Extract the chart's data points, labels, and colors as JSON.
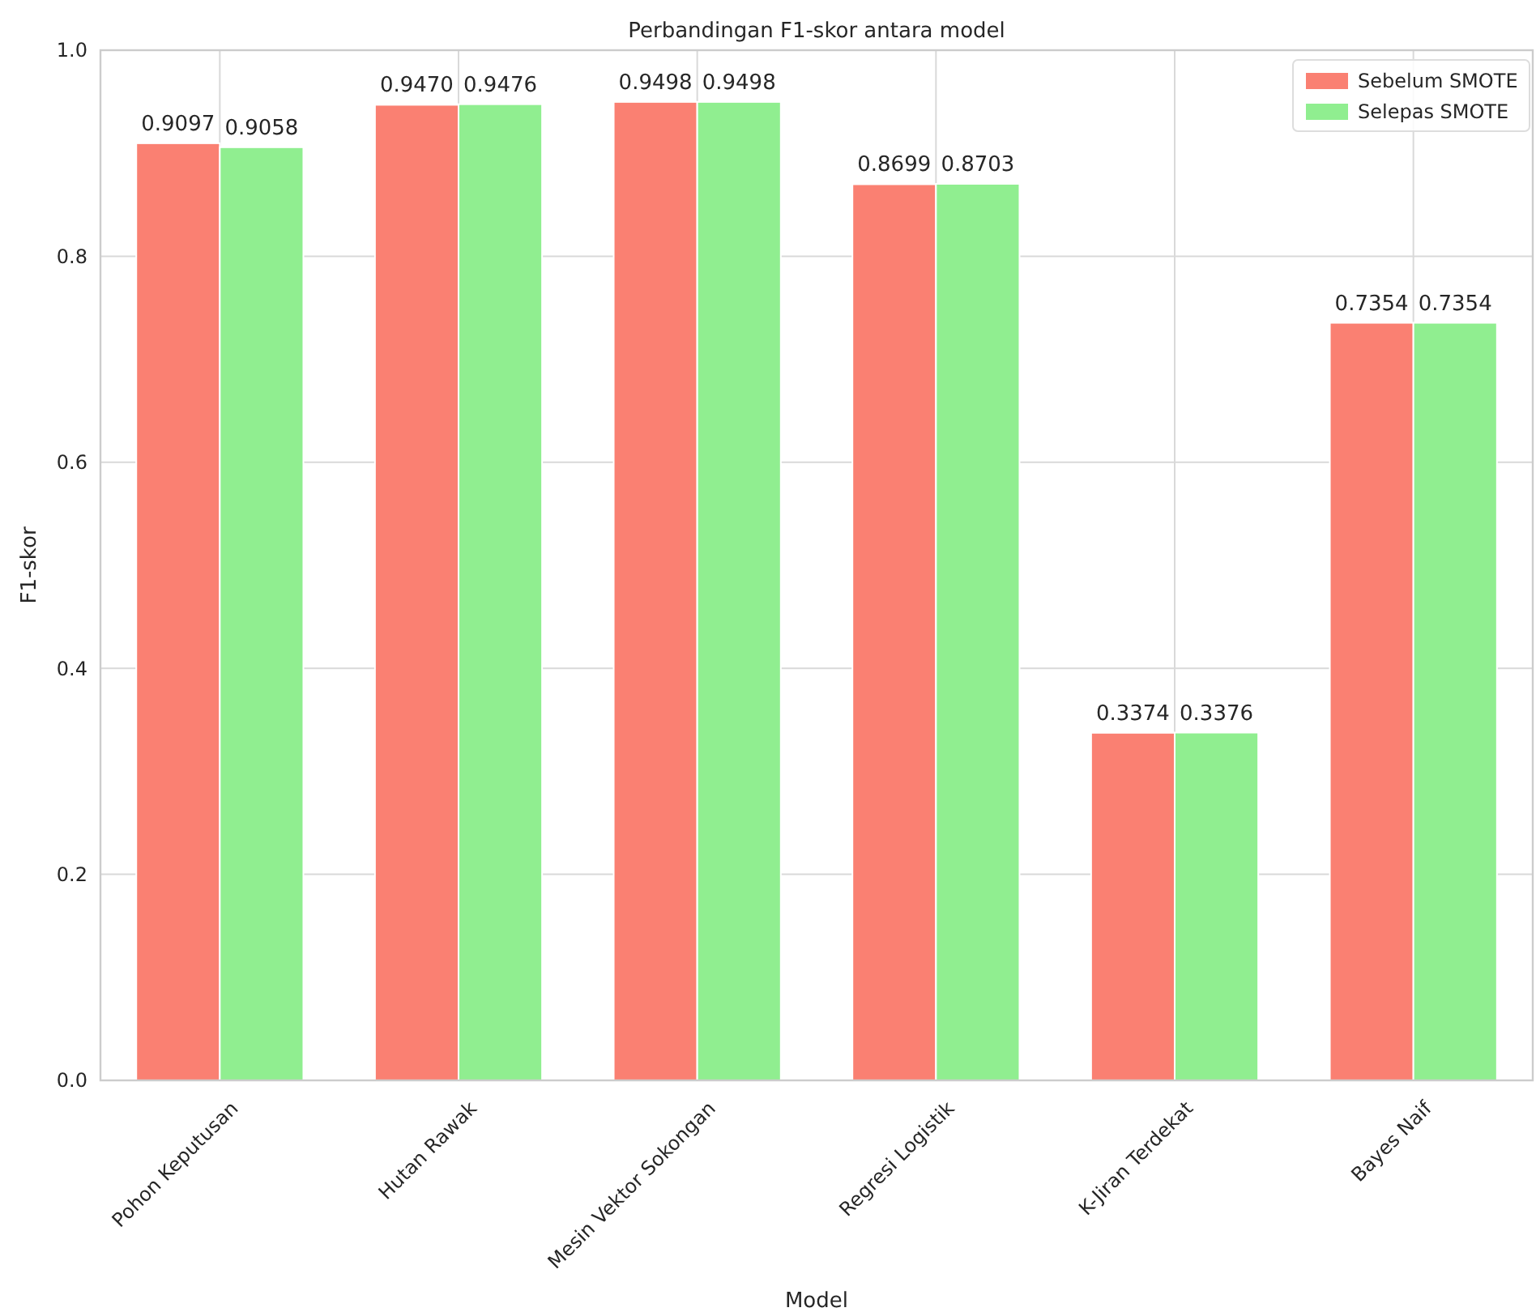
{
  "chart_data": {
    "type": "bar",
    "title": "Perbandingan F1-skor antara model",
    "xlabel": "Model",
    "ylabel": "F1-skor",
    "categories": [
      "Pohon Keputusan",
      "Hutan Rawak",
      "Mesin Vektor Sokongan",
      "Regresi Logistik",
      "K-Jiran Terdekat",
      "Bayes Naif"
    ],
    "series": [
      {
        "name": "Sebelum SMOTE",
        "color": "#fa8072",
        "values": [
          0.9097,
          0.947,
          0.9498,
          0.8699,
          0.3374,
          0.7354
        ],
        "value_labels": [
          "0.9097",
          "0.9470",
          "0.9498",
          "0.8699",
          "0.3374",
          "0.7354"
        ]
      },
      {
        "name": "Selepas SMOTE",
        "color": "#90ee90",
        "values": [
          0.9058,
          0.9476,
          0.9498,
          0.8703,
          0.3376,
          0.7354
        ],
        "value_labels": [
          "0.9058",
          "0.9476",
          "0.9498",
          "0.8703",
          "0.3376",
          "0.7354"
        ]
      }
    ],
    "ylim": [
      0,
      1
    ],
    "yticks": [
      {
        "value": 0,
        "label": "0.0"
      },
      {
        "value": 0.2,
        "label": "0.2"
      },
      {
        "value": 0.4,
        "label": "0.4"
      },
      {
        "value": 0.6,
        "label": "0.6"
      },
      {
        "value": 0.8,
        "label": "0.8"
      },
      {
        "value": 1,
        "label": "1.0"
      }
    ],
    "grid": true,
    "legend": "top right"
  }
}
